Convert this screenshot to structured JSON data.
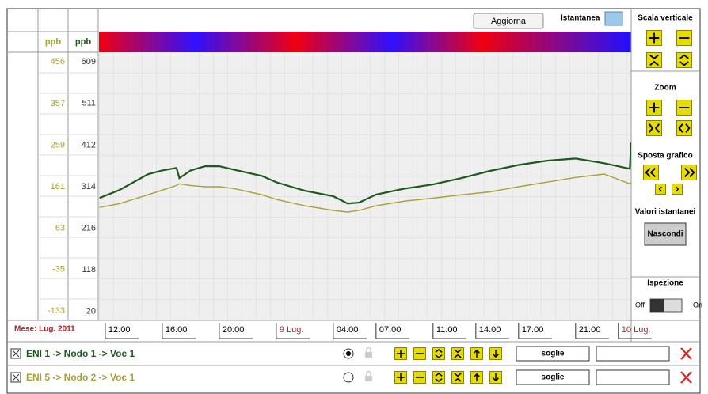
{
  "toolbar": {
    "refresh": "Aggiorna",
    "snapshot": "Istantanea"
  },
  "side_panel": {
    "vertical_scale": "Scala verticale",
    "zoom": "Zoom",
    "move": "Sposta grafico",
    "instant_values": "Valori istantanei",
    "hide": "Nascondi",
    "inspection": "Ispezione",
    "off": "Off",
    "on": "On"
  },
  "chart_data": {
    "type": "line",
    "y_label": "ppb",
    "y2_label": "ppb",
    "x_label": "Mese: Lug. 2011",
    "x": [
      -0.4,
      1,
      3,
      4,
      5,
      5.2,
      6,
      7,
      8,
      9,
      11,
      12,
      14,
      16,
      17,
      17.8,
      19,
      21,
      23,
      25,
      27,
      29,
      31,
      33,
      35,
      36.8,
      36.9
    ],
    "xlim": [
      -0.44,
      36.9
    ],
    "xticks": [
      {
        "value": 0,
        "label": "12:00"
      },
      {
        "value": 4,
        "label": "16:00"
      },
      {
        "value": 8,
        "label": "20:00"
      },
      {
        "value": 12,
        "label": "9 Lug.",
        "color": "#b22222"
      },
      {
        "value": 16,
        "label": "04:00"
      },
      {
        "value": 19,
        "label": "07:00"
      },
      {
        "value": 23,
        "label": "11:00"
      },
      {
        "value": 26,
        "label": "14:00"
      },
      {
        "value": 29,
        "label": "17:00"
      },
      {
        "value": 33,
        "label": "21:00"
      },
      {
        "value": 36,
        "label": "10 Lug.",
        "color": "#b22222"
      }
    ],
    "ylim": [
      -157,
      477
    ],
    "yticks": [
      456,
      357,
      259,
      161,
      63,
      -35,
      -133
    ],
    "y2lim": [
      -3,
      630
    ],
    "y2ticks": [
      609,
      511,
      412,
      314,
      216,
      118,
      20
    ],
    "grid": true,
    "series": [
      {
        "name": "ENI 1 -> Nodo 1 -> Voc 1",
        "color": "#1d5a1d",
        "axis": "y2",
        "values": [
          286,
          305,
          342,
          351,
          357,
          333,
          351,
          361,
          361,
          353,
          338,
          323,
          303,
          290,
          273,
          275,
          294,
          308,
          318,
          333,
          350,
          364,
          374,
          379,
          368,
          355,
          417
        ]
      },
      {
        "name": "ENI 5 -> Nodo 2 -> Voc 1",
        "color": "#a8a032",
        "values": [
          110,
          119,
          140,
          151,
          162,
          166,
          162,
          159,
          159,
          155,
          140,
          129,
          114,
          103,
          99,
          103,
          114,
          125,
          132,
          140,
          147,
          159,
          170,
          181,
          189,
          166,
          170
        ]
      }
    ]
  },
  "series_controls": [
    {
      "button": "soglie"
    },
    {
      "button": "soglie"
    }
  ]
}
